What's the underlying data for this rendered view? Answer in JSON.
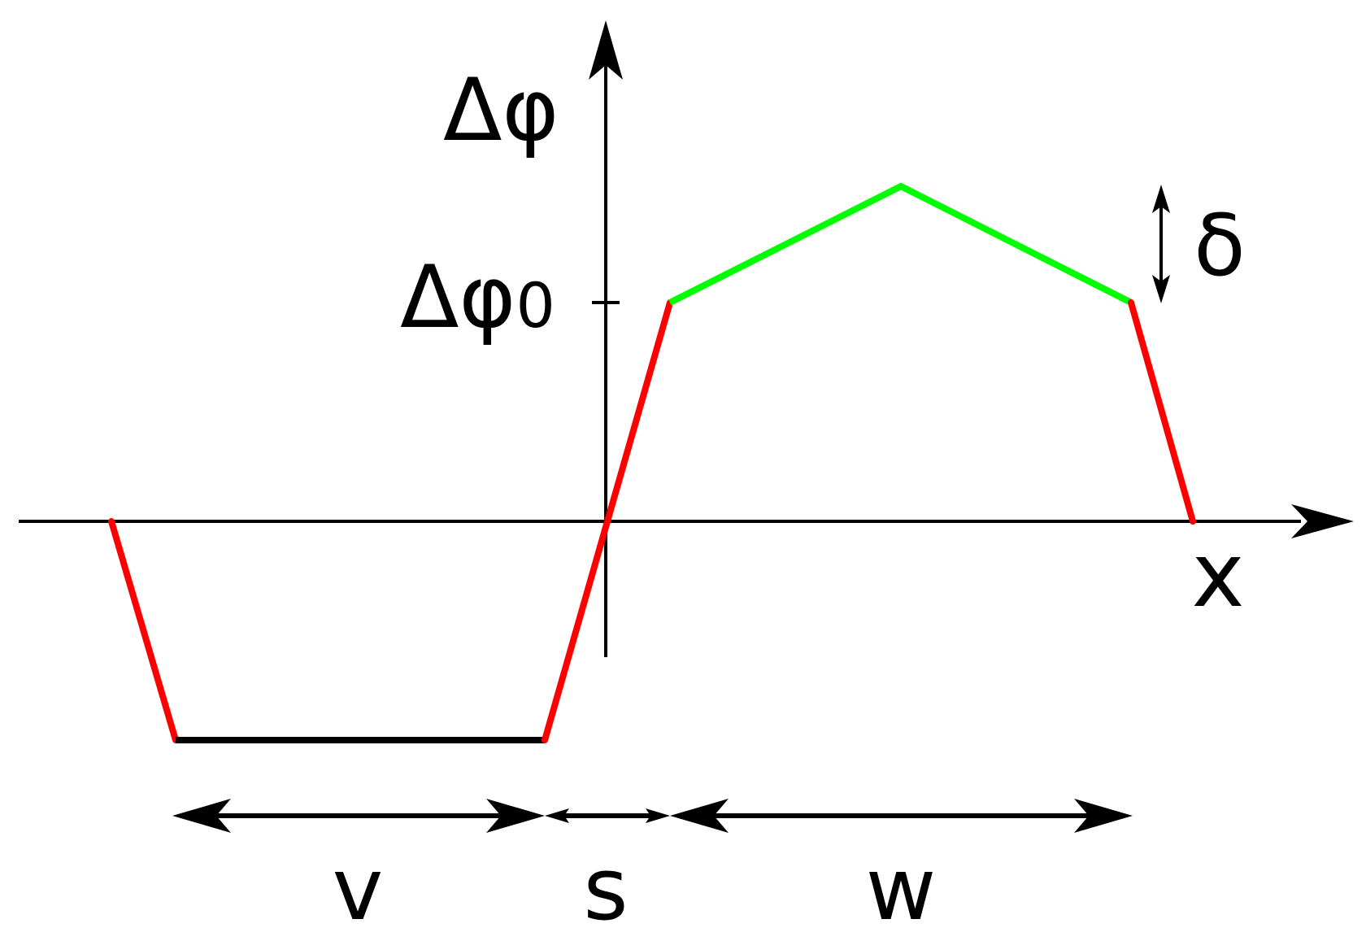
{
  "labels": {
    "y_axis": "Δφ",
    "y_tick_base": "Δφ",
    "y_tick_sub": "0",
    "x_axis": "x",
    "delta": "δ",
    "region_v": "v",
    "region_s": "s",
    "region_w": "w"
  },
  "colors": {
    "axis": "#000000",
    "red_segment": "#ff0000",
    "green_segment": "#00ff00",
    "bottom_segment": "#000000"
  }
}
